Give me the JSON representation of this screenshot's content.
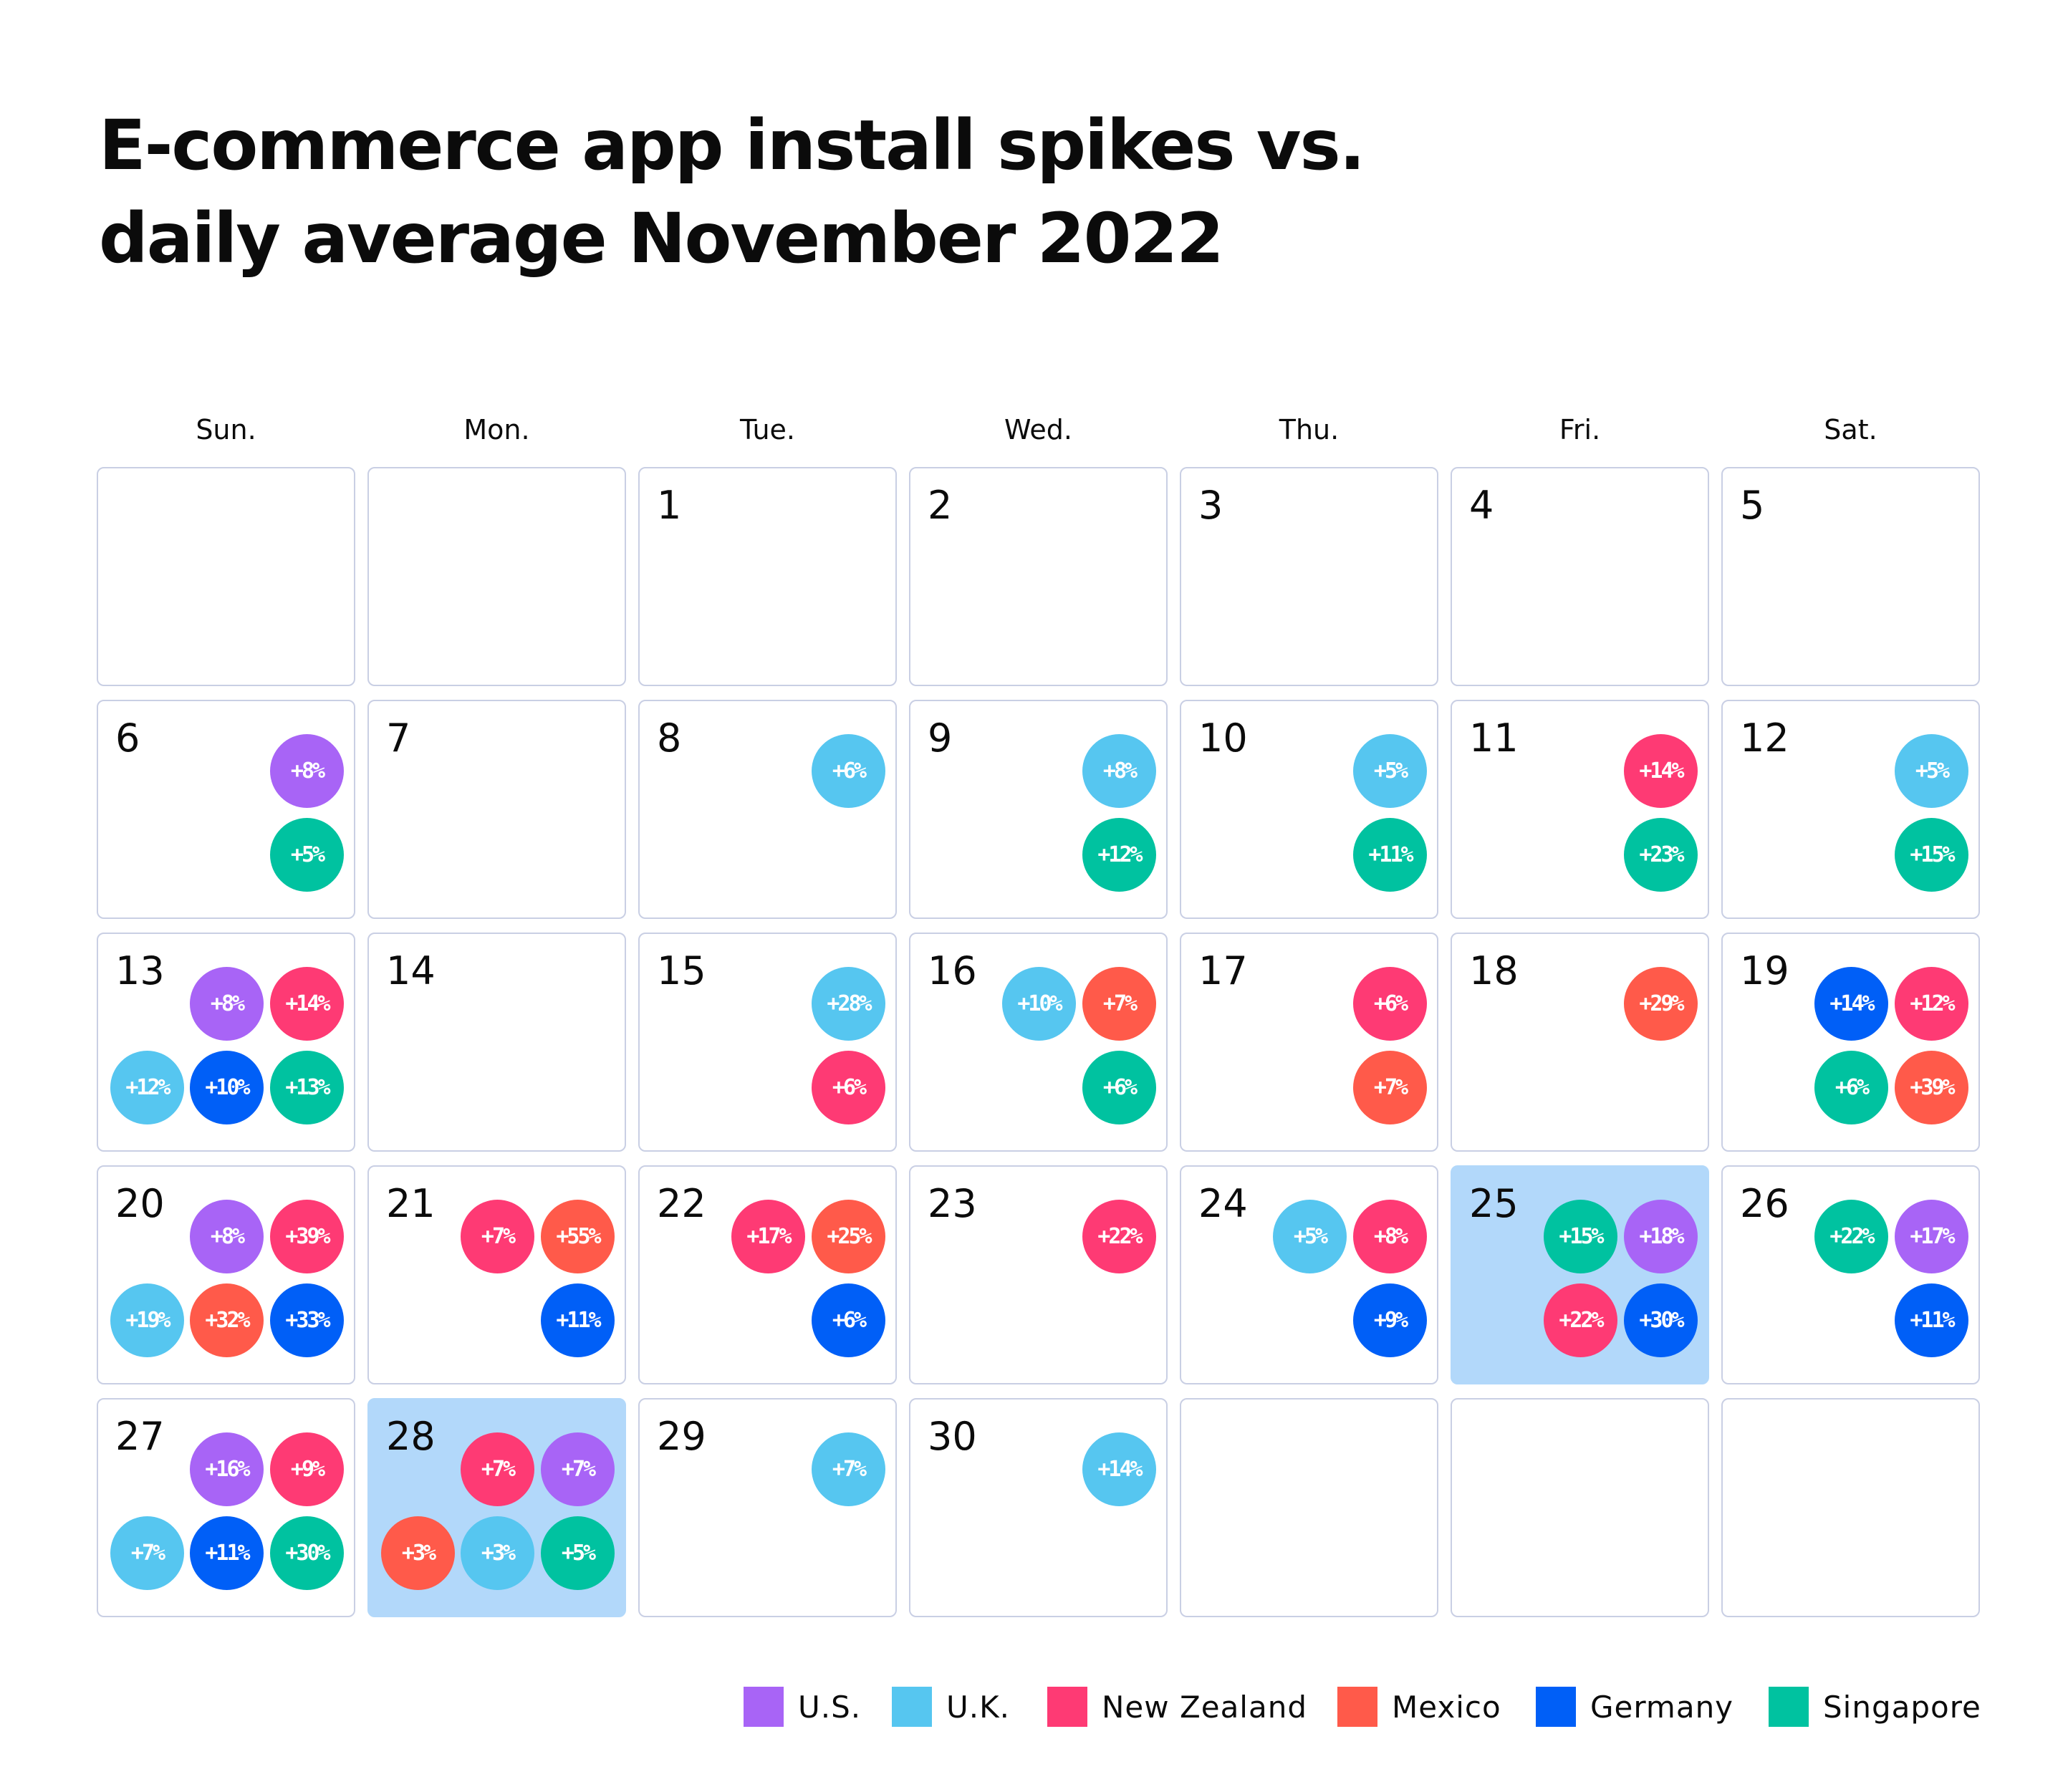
{
  "chart_data": {
    "type": "calendar",
    "title": [
      "E-commerce app install spikes vs.",
      "daily average November 2022"
    ],
    "weekdays": [
      "Sun.",
      "Mon.",
      "Tue.",
      "Wed.",
      "Thu.",
      "Fri.",
      "Sat."
    ],
    "month_start_weekday": 2,
    "days_in_month": 30,
    "highlighted_days": [
      25,
      28
    ],
    "countries": [
      {
        "key": "us",
        "label": "U.S.",
        "color": "#a864f6"
      },
      {
        "key": "uk",
        "label": "U.K.",
        "color": "#56c6f0"
      },
      {
        "key": "nz",
        "label": "New Zealand",
        "color": "#fe3a74"
      },
      {
        "key": "mx",
        "label": "Mexico",
        "color": "#ff5a4a"
      },
      {
        "key": "de",
        "label": "Germany",
        "color": "#005ff7"
      },
      {
        "key": "sg",
        "label": "Singapore",
        "color": "#00c2a0"
      }
    ],
    "spikes": {
      "6": [
        [
          "us",
          8
        ],
        [
          "sg",
          5
        ]
      ],
      "8": [
        [
          "uk",
          6
        ]
      ],
      "9": [
        [
          "uk",
          8
        ],
        [
          "sg",
          12
        ]
      ],
      "10": [
        [
          "uk",
          5
        ],
        [
          "sg",
          11
        ]
      ],
      "11": [
        [
          "nz",
          14
        ],
        [
          "sg",
          23
        ]
      ],
      "12": [
        [
          "uk",
          5
        ],
        [
          "sg",
          15
        ]
      ],
      "13": [
        [
          "us",
          8
        ],
        [
          "nz",
          14
        ],
        [
          "uk",
          12
        ],
        [
          "de",
          10
        ],
        [
          "sg",
          13
        ]
      ],
      "15": [
        [
          "uk",
          28
        ],
        [
          "nz",
          6
        ]
      ],
      "16": [
        [
          "uk",
          10
        ],
        [
          "mx",
          7
        ],
        [
          "sg",
          6
        ]
      ],
      "17": [
        [
          "nz",
          6
        ],
        [
          "mx",
          7
        ]
      ],
      "18": [
        [
          "mx",
          29
        ]
      ],
      "19": [
        [
          "de",
          14
        ],
        [
          "nz",
          12
        ],
        [
          "sg",
          6
        ],
        [
          "mx",
          39
        ]
      ],
      "20": [
        [
          "us",
          8
        ],
        [
          "nz",
          39
        ],
        [
          "uk",
          19
        ],
        [
          "mx",
          32
        ],
        [
          "de",
          33
        ]
      ],
      "21": [
        [
          "nz",
          7
        ],
        [
          "mx",
          55
        ],
        [
          "de",
          11
        ]
      ],
      "22": [
        [
          "nz",
          17
        ],
        [
          "mx",
          25
        ],
        [
          "de",
          6
        ]
      ],
      "23": [
        [
          "nz",
          22
        ]
      ],
      "24": [
        [
          "uk",
          5
        ],
        [
          "nz",
          8
        ],
        [
          "de",
          9
        ]
      ],
      "25": [
        [
          "sg",
          15
        ],
        [
          "us",
          18
        ],
        [
          "nz",
          22
        ],
        [
          "de",
          30
        ]
      ],
      "26": [
        [
          "sg",
          22
        ],
        [
          "us",
          17
        ],
        [
          "de",
          11
        ]
      ],
      "27": [
        [
          "us",
          16
        ],
        [
          "nz",
          9
        ],
        [
          "uk",
          7
        ],
        [
          "de",
          11
        ],
        [
          "sg",
          30
        ]
      ],
      "28": [
        [
          "nz",
          7
        ],
        [
          "us",
          7
        ],
        [
          "mx",
          3
        ],
        [
          "uk",
          3
        ],
        [
          "sg",
          5
        ]
      ],
      "29": [
        [
          "uk",
          7
        ]
      ],
      "30": [
        [
          "uk",
          14
        ]
      ]
    },
    "units": "% vs. daily average"
  }
}
